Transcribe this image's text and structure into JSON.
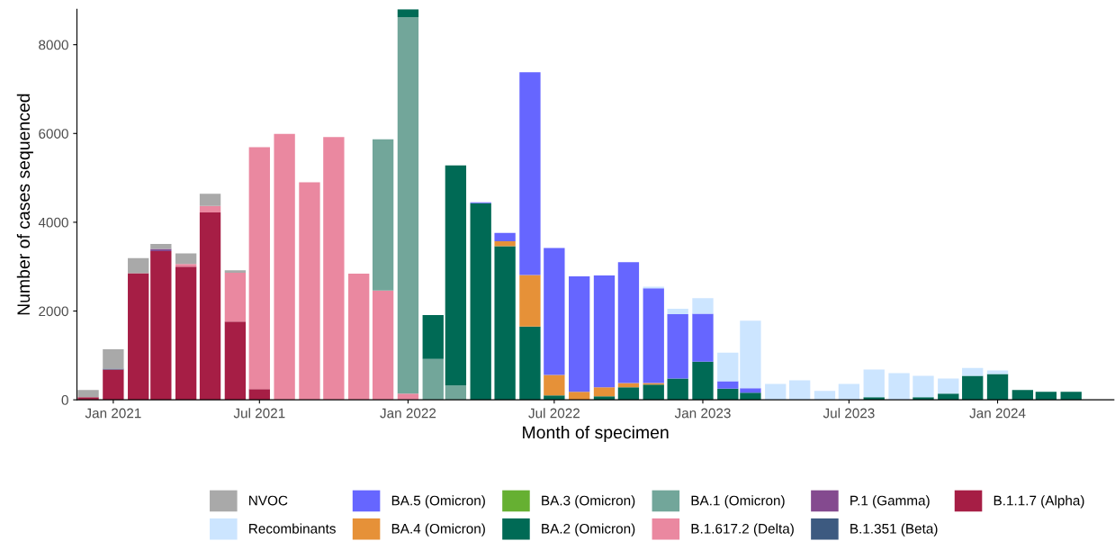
{
  "chart_data": {
    "type": "bar",
    "stacked": true,
    "xlabel": "Month of specimen",
    "ylabel": "Number of cases sequenced",
    "x": [
      "2020-12",
      "2021-01",
      "2021-02",
      "2021-03",
      "2021-04",
      "2021-05",
      "2021-06",
      "2021-07",
      "2021-08",
      "2021-09",
      "2021-10",
      "2021-11",
      "2021-12",
      "2022-01",
      "2022-02",
      "2022-03",
      "2022-04",
      "2022-05",
      "2022-06",
      "2022-07",
      "2022-08",
      "2022-09",
      "2022-10",
      "2022-11",
      "2022-12",
      "2023-01",
      "2023-02",
      "2023-03",
      "2023-04",
      "2023-05",
      "2023-06",
      "2023-07",
      "2023-08",
      "2023-09",
      "2023-10",
      "2023-11",
      "2023-12",
      "2024-01",
      "2024-02",
      "2024-03",
      "2024-04"
    ],
    "xlim": [
      "2020-11-17",
      "2024-05-24"
    ],
    "xticks": [
      {
        "value": "2021-01-01",
        "label": "Jan 2021"
      },
      {
        "value": "2021-07-01",
        "label": "Jul 2021"
      },
      {
        "value": "2022-01-01",
        "label": "Jan 2022"
      },
      {
        "value": "2022-07-01",
        "label": "Jul 2022"
      },
      {
        "value": "2023-01-01",
        "label": "Jan 2023"
      },
      {
        "value": "2023-07-01",
        "label": "Jul 2023"
      },
      {
        "value": "2024-01-01",
        "label": "Jan 2024"
      }
    ],
    "ylim": [
      0,
      8800
    ],
    "yticks": [
      0,
      2000,
      4000,
      6000,
      8000
    ],
    "grid": false,
    "legend": "bottom",
    "series": [
      {
        "name": "B.1.1.7 (Alpha)",
        "color": "#a61e45",
        "values": [
          60,
          680,
          2850,
          3350,
          3000,
          4220,
          1760,
          240,
          null,
          null,
          null,
          null,
          null,
          null,
          null,
          null,
          null,
          null,
          null,
          null,
          null,
          null,
          null,
          null,
          null,
          null,
          null,
          null,
          null,
          null,
          null,
          null,
          null,
          null,
          null,
          null,
          null,
          null,
          null,
          null,
          null
        ]
      },
      {
        "name": "B.1.351 (Beta)",
        "color": "#3d5a80",
        "values": [
          null,
          20,
          null,
          null,
          null,
          null,
          null,
          null,
          null,
          null,
          null,
          null,
          null,
          null,
          null,
          null,
          null,
          null,
          null,
          null,
          null,
          null,
          null,
          null,
          null,
          null,
          null,
          null,
          null,
          null,
          null,
          null,
          null,
          null,
          null,
          null,
          null,
          null,
          null,
          null,
          null
        ]
      },
      {
        "name": "P.1 (Gamma)",
        "color": "#844a8f",
        "values": [
          null,
          null,
          null,
          50,
          null,
          null,
          null,
          null,
          null,
          null,
          null,
          null,
          null,
          null,
          null,
          null,
          null,
          null,
          null,
          null,
          null,
          null,
          null,
          null,
          null,
          null,
          null,
          null,
          null,
          null,
          null,
          null,
          null,
          null,
          null,
          null,
          null,
          null,
          null,
          null,
          null
        ]
      },
      {
        "name": "B.1.617.2 (Delta)",
        "color": "#ea88a0",
        "values": [
          null,
          null,
          null,
          null,
          60,
          150,
          1100,
          5450,
          5990,
          4900,
          5920,
          2840,
          2460,
          140,
          null,
          null,
          null,
          null,
          null,
          null,
          null,
          null,
          null,
          null,
          null,
          null,
          null,
          null,
          null,
          null,
          null,
          null,
          null,
          null,
          null,
          null,
          null,
          null,
          null,
          null,
          null
        ]
      },
      {
        "name": "BA.1 (Omicron)",
        "color": "#72a69a",
        "values": [
          null,
          null,
          null,
          null,
          null,
          null,
          null,
          null,
          null,
          null,
          null,
          null,
          3410,
          8480,
          920,
          320,
          null,
          null,
          null,
          null,
          null,
          null,
          null,
          null,
          null,
          null,
          null,
          null,
          null,
          null,
          null,
          null,
          null,
          null,
          null,
          null,
          null,
          null,
          null,
          null,
          null
        ]
      },
      {
        "name": "BA.2 (Omicron)",
        "color": "#006a55",
        "values": [
          null,
          null,
          null,
          null,
          null,
          null,
          null,
          null,
          null,
          null,
          null,
          null,
          null,
          180,
          990,
          4960,
          4430,
          3460,
          1650,
          100,
          null,
          80,
          280,
          340,
          480,
          860,
          250,
          160,
          null,
          null,
          null,
          null,
          60,
          null,
          60,
          140,
          540,
          580,
          220,
          180,
          180
        ]
      },
      {
        "name": "BA.3 (Omicron)",
        "color": "#66b032",
        "values": [
          null,
          null,
          null,
          null,
          null,
          null,
          null,
          null,
          null,
          null,
          null,
          null,
          null,
          null,
          null,
          null,
          null,
          null,
          null,
          null,
          null,
          null,
          null,
          null,
          null,
          null,
          null,
          null,
          null,
          null,
          null,
          null,
          null,
          null,
          null,
          null,
          null,
          null,
          null,
          null,
          null
        ]
      },
      {
        "name": "BA.4 (Omicron)",
        "color": "#e69138",
        "values": [
          null,
          null,
          null,
          null,
          null,
          null,
          null,
          null,
          null,
          null,
          null,
          null,
          null,
          null,
          null,
          null,
          null,
          110,
          1160,
          460,
          180,
          200,
          100,
          40,
          null,
          null,
          null,
          null,
          null,
          null,
          null,
          null,
          null,
          null,
          null,
          null,
          null,
          null,
          null,
          null,
          null
        ]
      },
      {
        "name": "BA.5 (Omicron)",
        "color": "#6666ff",
        "values": [
          null,
          null,
          null,
          null,
          null,
          null,
          null,
          null,
          null,
          null,
          null,
          null,
          null,
          null,
          null,
          null,
          20,
          190,
          4570,
          2860,
          2600,
          2520,
          2720,
          2130,
          1450,
          1080,
          170,
          100,
          null,
          null,
          null,
          null,
          null,
          null,
          null,
          null,
          null,
          null,
          null,
          null,
          null
        ]
      },
      {
        "name": "Recombinants",
        "color": "#cce5ff",
        "values": [
          null,
          null,
          null,
          null,
          null,
          null,
          null,
          null,
          null,
          null,
          null,
          null,
          null,
          null,
          null,
          null,
          null,
          null,
          null,
          null,
          null,
          null,
          null,
          40,
          120,
          350,
          640,
          1520,
          360,
          440,
          200,
          360,
          620,
          600,
          480,
          340,
          180,
          80,
          null,
          null,
          null
        ]
      },
      {
        "name": "NVOC",
        "color": "#a9a9a9",
        "values": [
          160,
          440,
          340,
          110,
          240,
          270,
          60,
          null,
          null,
          null,
          null,
          null,
          null,
          null,
          null,
          null,
          null,
          null,
          null,
          null,
          null,
          null,
          null,
          null,
          null,
          null,
          null,
          null,
          null,
          null,
          null,
          null,
          null,
          null,
          null,
          null,
          null,
          null,
          null,
          null,
          null
        ]
      }
    ]
  }
}
